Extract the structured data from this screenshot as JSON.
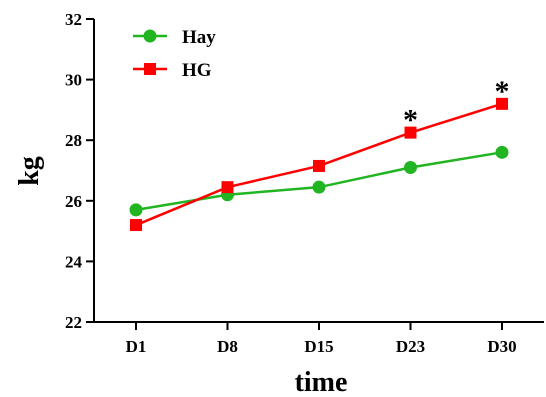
{
  "chart_data": {
    "type": "line",
    "categories": [
      "D1",
      "D8",
      "D15",
      "D23",
      "D30"
    ],
    "series": [
      {
        "name": "Hay",
        "color": "#22b522",
        "marker": "circle",
        "values": [
          25.7,
          26.2,
          26.45,
          27.1,
          27.6
        ]
      },
      {
        "name": "HG",
        "color": "#ff0000",
        "marker": "square",
        "values": [
          25.2,
          26.45,
          27.15,
          28.25,
          29.2
        ]
      }
    ],
    "xlabel": "time",
    "ylabel": "kg",
    "ylim": [
      22,
      32
    ],
    "yticks": [
      22,
      24,
      26,
      28,
      30,
      32
    ],
    "annotations": [
      {
        "text": "*",
        "category": "D23",
        "value": 28.25
      },
      {
        "text": "*",
        "category": "D30",
        "value": 29.2
      }
    ],
    "legend": "top-left",
    "grid": false
  }
}
